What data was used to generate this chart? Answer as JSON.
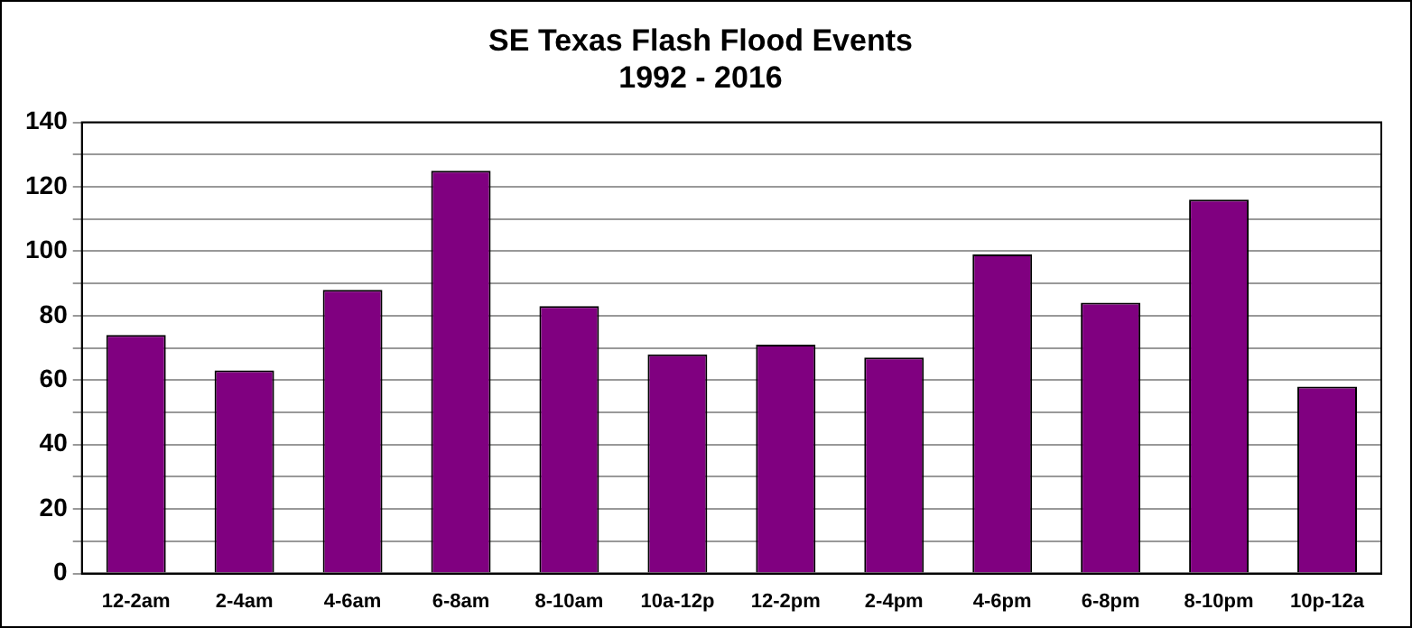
{
  "chart_data": {
    "type": "bar",
    "title": [
      "SE Texas Flash Flood Events",
      "1992 - 2016"
    ],
    "categories": [
      "12-2am",
      "2-4am",
      "4-6am",
      "6-8am",
      "8-10am",
      "10a-12p",
      "12-2pm",
      "2-4pm",
      "4-6pm",
      "6-8pm",
      "8-10pm",
      "10p-12a"
    ],
    "values": [
      74,
      63,
      88,
      125,
      83,
      68,
      71,
      67,
      99,
      84,
      116,
      58
    ],
    "color": "#800080",
    "ylim": [
      0,
      140
    ],
    "yticks": [
      0,
      {
        "value": 10,
        "label": null
      },
      20,
      {
        "value": 30,
        "label": null
      },
      40,
      {
        "value": 50,
        "label": null
      },
      60,
      {
        "value": 70,
        "label": null
      },
      80,
      {
        "value": 90,
        "label": null
      },
      100,
      {
        "value": 110,
        "label": null
      },
      120,
      {
        "value": 130,
        "label": null
      },
      140
    ],
    "grid": "y",
    "legend": false
  }
}
